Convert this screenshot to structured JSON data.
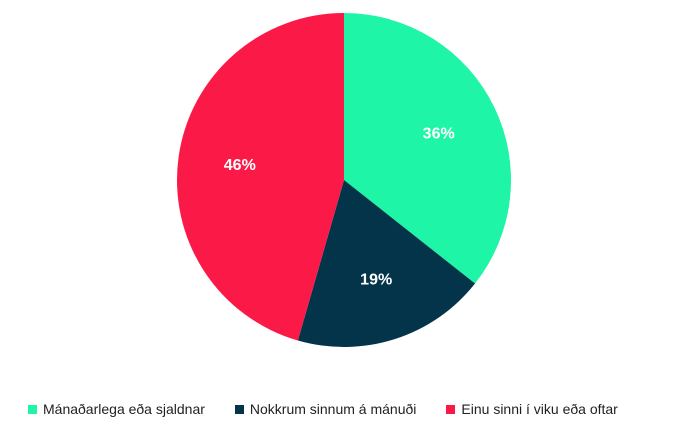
{
  "chart_data": {
    "type": "pie",
    "title": "",
    "start_angle_deg": 0,
    "direction": "clockwise",
    "legend_position": "bottom",
    "slices": [
      {
        "label": "Mánaðarlega eða sjaldnar",
        "value": 36,
        "display": "36%",
        "color": "#1ef5a6",
        "label_color": "#ffffff"
      },
      {
        "label": "Nokkrum sinnum á mánuði",
        "value": 19,
        "display": "19%",
        "color": "#04344a",
        "label_color": "#ffffff"
      },
      {
        "label": "Einu sinni í viku eða oftar",
        "value": 46,
        "display": "46%",
        "color": "#fb1a47",
        "label_color": "#ffffff"
      }
    ]
  }
}
